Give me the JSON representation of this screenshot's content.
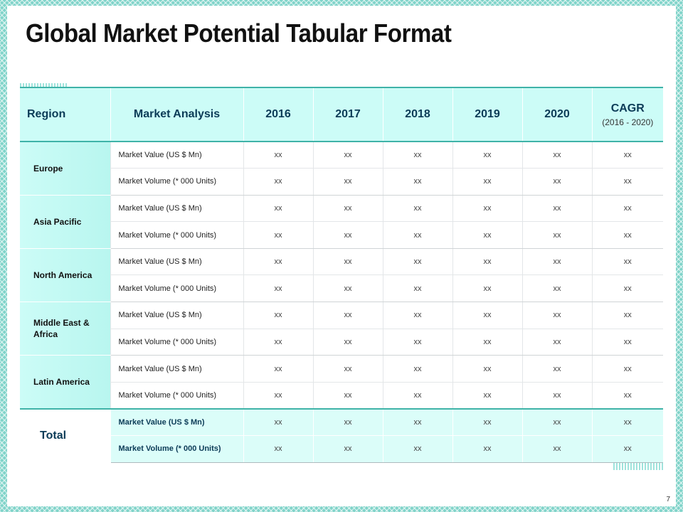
{
  "slide": {
    "title": "Global Market Potential Tabular Format",
    "page_number": "7"
  },
  "table": {
    "headers": {
      "region": "Region",
      "analysis": "Market Analysis",
      "years": [
        "2016",
        "2017",
        "2018",
        "2019",
        "2020"
      ],
      "cagr": "CAGR",
      "cagr_range": "(2016 - 2020)"
    },
    "regions": [
      {
        "name": "Europe",
        "rows": [
          {
            "label": "Market Value (US $ Mn)",
            "values": [
              "xx",
              "xx",
              "xx",
              "xx",
              "xx",
              "xx"
            ]
          },
          {
            "label": "Market Volume (* 000 Units)",
            "values": [
              "xx",
              "xx",
              "xx",
              "xx",
              "xx",
              "xx"
            ]
          }
        ]
      },
      {
        "name": "Asia Pacific",
        "rows": [
          {
            "label": "Market Value (US $ Mn)",
            "values": [
              "xx",
              "xx",
              "xx",
              "xx",
              "xx",
              "xx"
            ]
          },
          {
            "label": "Market Volume (* 000 Units)",
            "values": [
              "xx",
              "xx",
              "xx",
              "xx",
              "xx",
              "xx"
            ]
          }
        ]
      },
      {
        "name": "North America",
        "rows": [
          {
            "label": "Market Value (US $ Mn)",
            "values": [
              "xx",
              "xx",
              "xx",
              "xx",
              "xx",
              "xx"
            ]
          },
          {
            "label": "Market Volume (* 000 Units)",
            "values": [
              "xx",
              "xx",
              "xx",
              "xx",
              "xx",
              "xx"
            ]
          }
        ]
      },
      {
        "name": "Middle East & Africa",
        "rows": [
          {
            "label": "Market Value (US $ Mn)",
            "values": [
              "xx",
              "xx",
              "xx",
              "xx",
              "xx",
              "xx"
            ]
          },
          {
            "label": "Market Volume (* 000 Units)",
            "values": [
              "xx",
              "xx",
              "xx",
              "xx",
              "xx",
              "xx"
            ]
          }
        ]
      },
      {
        "name": "Latin America",
        "rows": [
          {
            "label": "Market Value (US $ Mn)",
            "values": [
              "xx",
              "xx",
              "xx",
              "xx",
              "xx",
              "xx"
            ]
          },
          {
            "label": "Market Volume (* 000 Units)",
            "values": [
              "xx",
              "xx",
              "xx",
              "xx",
              "xx",
              "xx"
            ]
          }
        ]
      }
    ],
    "total": {
      "name": "Total",
      "rows": [
        {
          "label": "Market Value (US $ Mn)",
          "values": [
            "xx",
            "xx",
            "xx",
            "xx",
            "xx",
            "xx"
          ]
        },
        {
          "label": "Market Volume  (* 000 Units)",
          "values": [
            "xx",
            "xx",
            "xx",
            "xx",
            "xx",
            "xx"
          ]
        }
      ]
    }
  },
  "colors": {
    "header_bg": "#ccfcf7",
    "accent": "#3fb3a8",
    "header_text": "#0b3b57",
    "border_pattern": "#7fd3c9"
  }
}
